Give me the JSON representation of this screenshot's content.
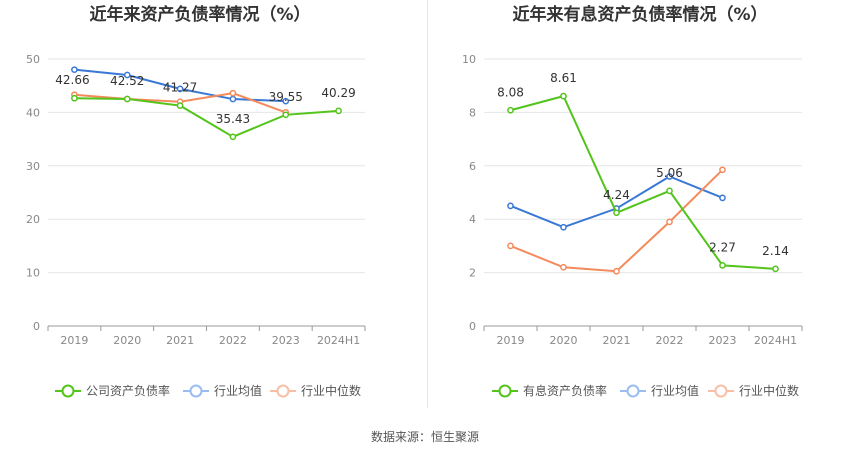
{
  "chart_data": [
    {
      "type": "line",
      "title": "近年来资产负债率情况（%）",
      "categories": [
        "2019",
        "2020",
        "2021",
        "2022",
        "2023",
        "2024H1"
      ],
      "ylim": [
        0,
        50
      ],
      "yticks": [
        0,
        10,
        20,
        30,
        40,
        50
      ],
      "grid": true,
      "legend_position": "bottom",
      "series": [
        {
          "name": "公司资产负债率",
          "color": "#52c41a",
          "values": [
            42.66,
            42.52,
            41.27,
            35.43,
            39.55,
            40.29
          ],
          "labels": [
            "42.66",
            "42.52",
            "41.27",
            "35.43",
            "39.55",
            "40.29"
          ]
        },
        {
          "name": "行业均值",
          "color": "#3a78d6",
          "values": [
            48.0,
            47.0,
            44.4,
            42.5,
            42.1,
            null
          ]
        },
        {
          "name": "行业中位数",
          "color": "#f58a5b",
          "values": [
            43.3,
            42.5,
            42.0,
            43.6,
            40.0,
            null
          ]
        }
      ]
    },
    {
      "type": "line",
      "title": "近年来有息资产负债率情况（%）",
      "categories": [
        "2019",
        "2020",
        "2021",
        "2022",
        "2023",
        "2024H1"
      ],
      "ylim": [
        0,
        10
      ],
      "yticks": [
        0,
        2,
        4,
        6,
        8,
        10
      ],
      "grid": true,
      "legend_position": "bottom",
      "series": [
        {
          "name": "有息资产负债率",
          "color": "#52c41a",
          "values": [
            8.08,
            8.61,
            4.24,
            5.06,
            2.27,
            2.14
          ],
          "labels": [
            "8.08",
            "8.61",
            "4.24",
            "5.06",
            "2.27",
            "2.14"
          ]
        },
        {
          "name": "行业均值",
          "color": "#3a78d6",
          "values": [
            4.5,
            3.7,
            4.4,
            5.6,
            4.8,
            null
          ]
        },
        {
          "name": "行业中位数",
          "color": "#f58a5b",
          "values": [
            3.0,
            2.2,
            2.05,
            3.9,
            5.85,
            null
          ]
        }
      ]
    }
  ],
  "footer": {
    "source": "数据来源：恒生聚源"
  }
}
